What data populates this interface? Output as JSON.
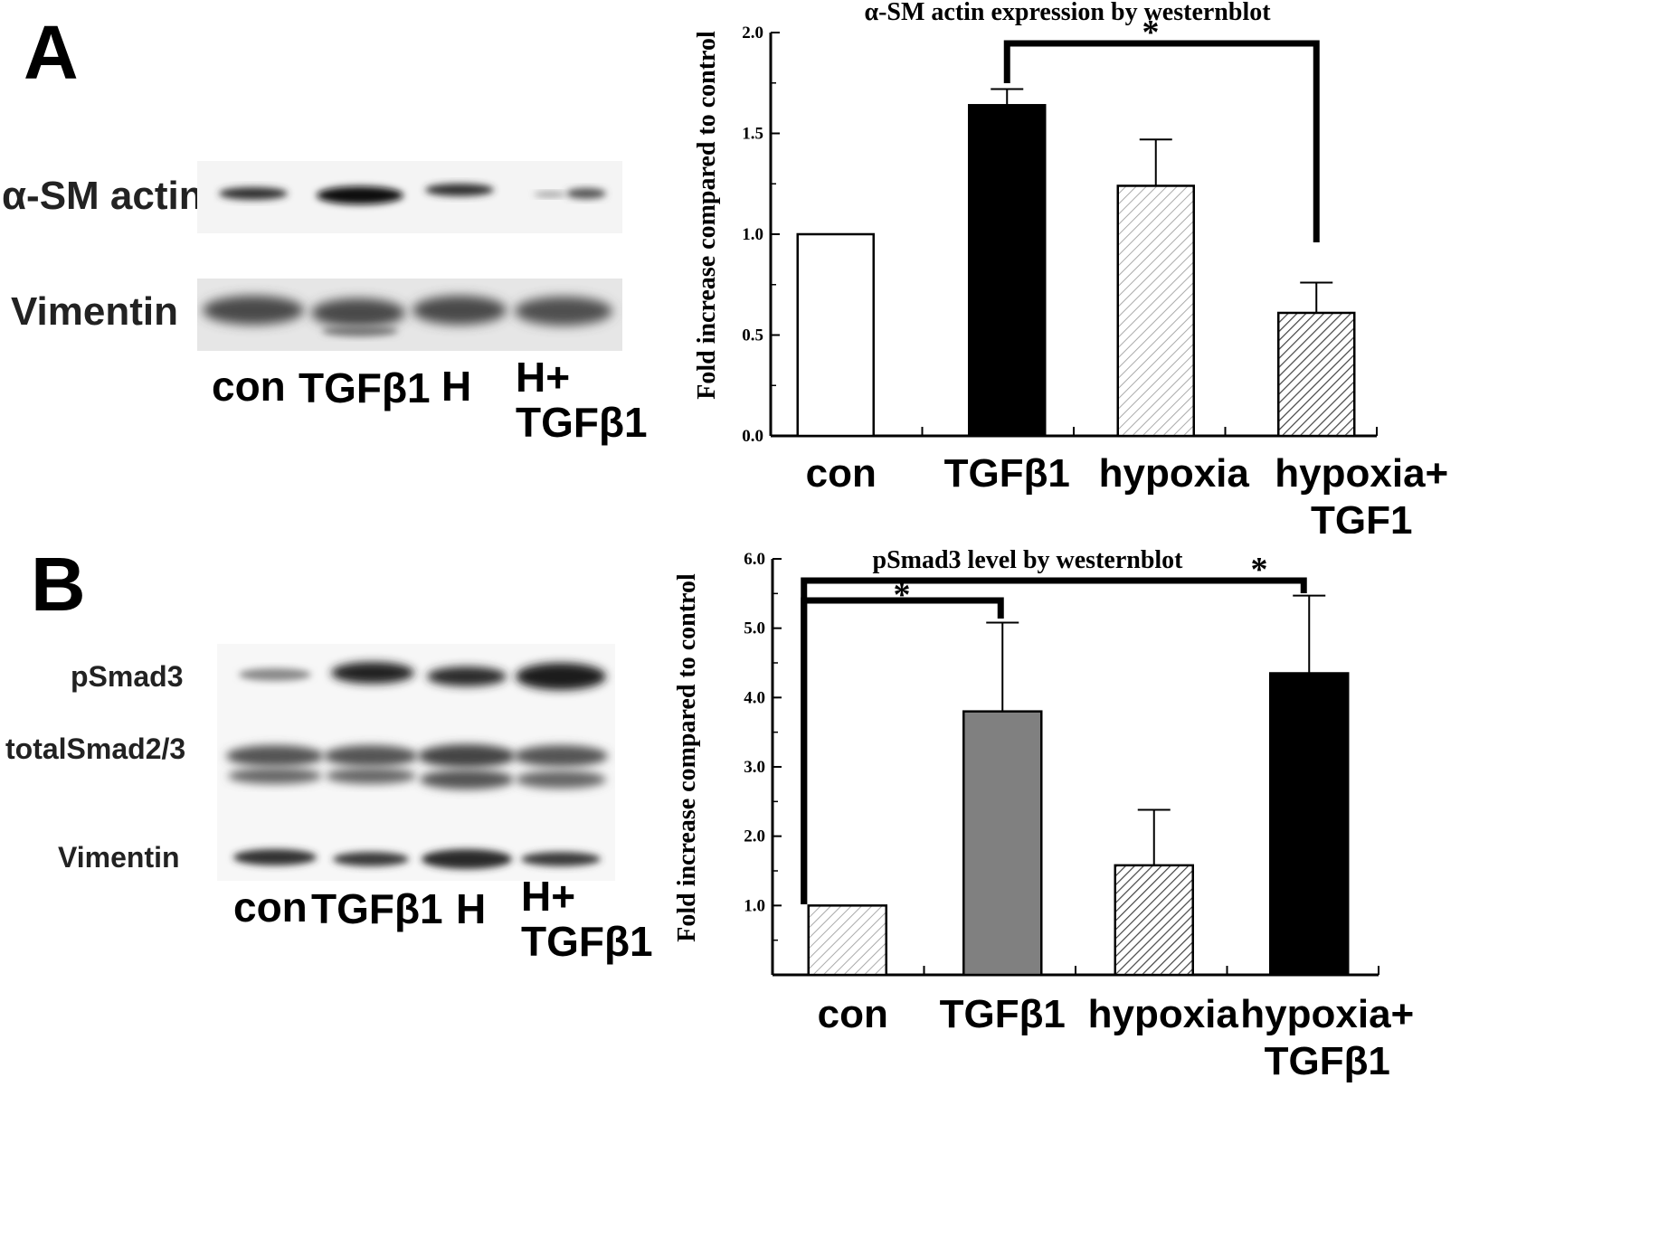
{
  "panels": [
    {
      "letter": "A",
      "blot": {
        "bands": [
          "α-SM actin",
          "Vimentin"
        ],
        "lanes": [
          "con",
          "TGFβ1",
          "H",
          "H+\nTGFβ1"
        ]
      }
    },
    {
      "letter": "B",
      "blot": {
        "bands": [
          "pSmad3",
          "totalSmad2/3",
          "Vimentin"
        ],
        "lanes": [
          "con",
          "TGFβ1",
          "H",
          "H+\nTGFβ1"
        ]
      }
    }
  ],
  "chart_data": [
    {
      "type": "bar",
      "title": "α-SM actin expression by westernblot",
      "ylabel": "Fold  increase compared to control",
      "xlabel": "",
      "categories": [
        "con",
        "TGFβ1",
        "hypoxia",
        "hypoxia+\nTGF1"
      ],
      "values": [
        1.0,
        1.64,
        1.24,
        0.61
      ],
      "errors": [
        0.0,
        0.08,
        0.23,
        0.15
      ],
      "bar_styles": [
        "white",
        "black",
        "light-hatch",
        "dark-hatch"
      ],
      "ylim": [
        0,
        2.0
      ],
      "yticks": [
        "0.0",
        "0.5",
        "1.0",
        "1.5",
        "2.0"
      ],
      "significance": [
        {
          "from": "TGFβ1",
          "to": "hypoxia+\nTGF1",
          "label": "*"
        }
      ],
      "grid": false
    },
    {
      "type": "bar",
      "title": "pSmad3 level by westernblot",
      "ylabel": "Fold  increase compared to control",
      "xlabel": "",
      "categories": [
        "con",
        "TGFβ1",
        "hypoxia",
        "hypoxia+\nTGFβ1"
      ],
      "values": [
        1.0,
        3.8,
        1.58,
        4.35
      ],
      "errors": [
        0.0,
        1.28,
        0.8,
        1.12
      ],
      "bar_styles": [
        "light-hatch",
        "gray",
        "dark-hatch",
        "black"
      ],
      "ylim": [
        0,
        6.0
      ],
      "yticks": [
        "1.0",
        "2.0",
        "3.0",
        "4.0",
        "5.0",
        "6.0"
      ],
      "significance": [
        {
          "from": "con",
          "to": "TGFβ1",
          "label": "*"
        },
        {
          "from": "con",
          "to": "hypoxia+\nTGFβ1",
          "label": "*"
        }
      ],
      "grid": false
    }
  ]
}
